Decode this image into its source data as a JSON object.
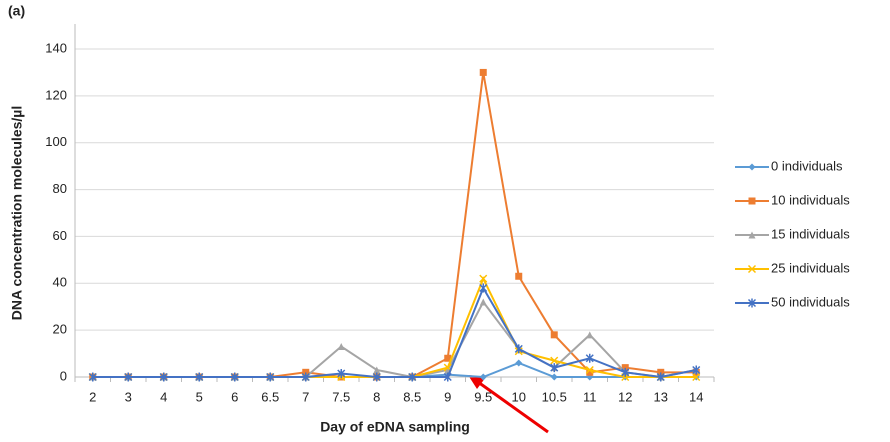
{
  "chart_data": {
    "type": "line",
    "panel_label": "(a)",
    "x_label": "Day of eDNA sampling",
    "y_label": "DNA concentration molecules/µl",
    "categories": [
      "2",
      "3",
      "4",
      "5",
      "6",
      "6.5",
      "7",
      "7.5",
      "8",
      "8.5",
      "9",
      "9.5",
      "10",
      "10.5",
      "11",
      "12",
      "13",
      "14"
    ],
    "ylim": [
      0,
      140
    ],
    "yticks": [
      0,
      20,
      40,
      60,
      80,
      100,
      120,
      140
    ],
    "grid": true,
    "series": [
      {
        "name": "0 individuals",
        "color": "#5b9bd5",
        "marker": "diamond",
        "values": [
          0,
          0,
          0,
          0,
          0,
          0,
          0,
          0,
          0,
          0,
          1,
          0,
          6,
          0,
          0,
          0,
          0,
          0
        ]
      },
      {
        "name": "10 individuals",
        "color": "#ed7d31",
        "marker": "square",
        "values": [
          0,
          0,
          0,
          0,
          0,
          0,
          2,
          0,
          0,
          0,
          8,
          130,
          43,
          18,
          2,
          4,
          2,
          2
        ]
      },
      {
        "name": "15 individuals",
        "color": "#a5a5a5",
        "marker": "triangle",
        "values": [
          0,
          0,
          0,
          0,
          0,
          0,
          0,
          13,
          3,
          0,
          3,
          32,
          12,
          4,
          18,
          2,
          0,
          3
        ]
      },
      {
        "name": "25 individuals",
        "color": "#ffc000",
        "marker": "cross",
        "values": [
          0,
          0,
          0,
          0,
          0,
          0,
          0,
          0,
          0,
          0,
          4,
          42,
          11,
          7,
          3,
          0,
          0,
          0
        ]
      },
      {
        "name": "50 individuals",
        "color": "#4472c4",
        "marker": "star",
        "values": [
          0,
          0,
          0,
          0,
          0,
          0,
          0,
          1.5,
          0,
          0,
          0,
          38,
          12,
          4,
          8,
          2,
          0,
          3
        ]
      }
    ]
  }
}
